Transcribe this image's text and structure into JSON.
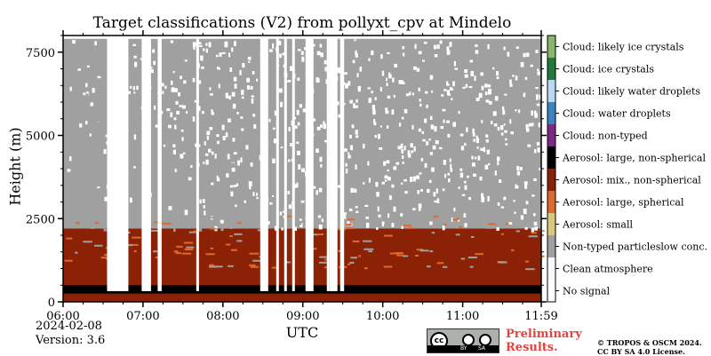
{
  "chart_data": {
    "type": "heatmap",
    "title": "Target classifications (V2) from pollyxt_cpv at Mindelo",
    "xlabel": "UTC",
    "ylabel": "Height (m)",
    "x_ticks": [
      "06:00",
      "07:00",
      "08:00",
      "09:00",
      "10:00",
      "11:00",
      "11:59"
    ],
    "x_range": [
      "06:00",
      "11:59"
    ],
    "y_ticks": [
      0,
      2500,
      5000,
      7500
    ],
    "ylim": [
      0,
      8000
    ],
    "colorbar": [
      {
        "label": "No signal",
        "color": "#ffffff"
      },
      {
        "label": "Clean atmosphere",
        "color": "#f8f8f8"
      },
      {
        "label": "Non-typed particleslow conc.",
        "color": "#a0a0a0"
      },
      {
        "label": "Aerosol: small",
        "color": "#dac97b"
      },
      {
        "label": "Aerosol: large, spherical",
        "color": "#e0692d"
      },
      {
        "label": "Aerosol: mix., non-spherical",
        "color": "#8b2205"
      },
      {
        "label": "Aerosol: large, non-spherical",
        "color": "#000000"
      },
      {
        "label": "Cloud: non-typed",
        "color": "#7b2a85"
      },
      {
        "label": "Cloud: water droplets",
        "color": "#3a86c5"
      },
      {
        "label": "Cloud: likely water droplets",
        "color": "#b9d8f1"
      },
      {
        "label": "Cloud: ice crystals",
        "color": "#1e7b3c"
      },
      {
        "label": "Cloud: likely ice crystals",
        "color": "#86b76d"
      }
    ],
    "layers": [
      {
        "class": "Aerosol: large, non-spherical",
        "from_m": 250,
        "to_m": 500
      },
      {
        "class": "Aerosol: mix., non-spherical",
        "from_m": 0,
        "to_m": 2200
      },
      {
        "class": "Non-typed particleslow conc.",
        "from_m": 2200,
        "to_m": 7900
      }
    ],
    "gaps_utc": [
      [
        "06:33",
        "06:49"
      ],
      [
        "06:59",
        "07:06"
      ],
      [
        "07:11",
        "07:14"
      ],
      [
        "07:40",
        "07:42"
      ],
      [
        "08:28",
        "08:34"
      ],
      [
        "08:40",
        "08:42"
      ],
      [
        "08:46",
        "08:48"
      ],
      [
        "08:52",
        "08:54"
      ],
      [
        "09:02",
        "09:08"
      ],
      [
        "09:18",
        "09:20"
      ],
      [
        "09:20",
        "09:26"
      ],
      [
        "09:28",
        "09:31"
      ]
    ]
  },
  "footer": {
    "date": "2024-02-08",
    "version": "Version: 3.6",
    "cc_badge": {
      "cc": "cc",
      "by": "BY",
      "sa": "SA"
    },
    "preliminary_line1": "Preliminary",
    "preliminary_line2": "Results.",
    "copyright_line1": "© TROPOS & OSCM 2024.",
    "copyright_line2": "CC BY SA 4.0 License."
  }
}
